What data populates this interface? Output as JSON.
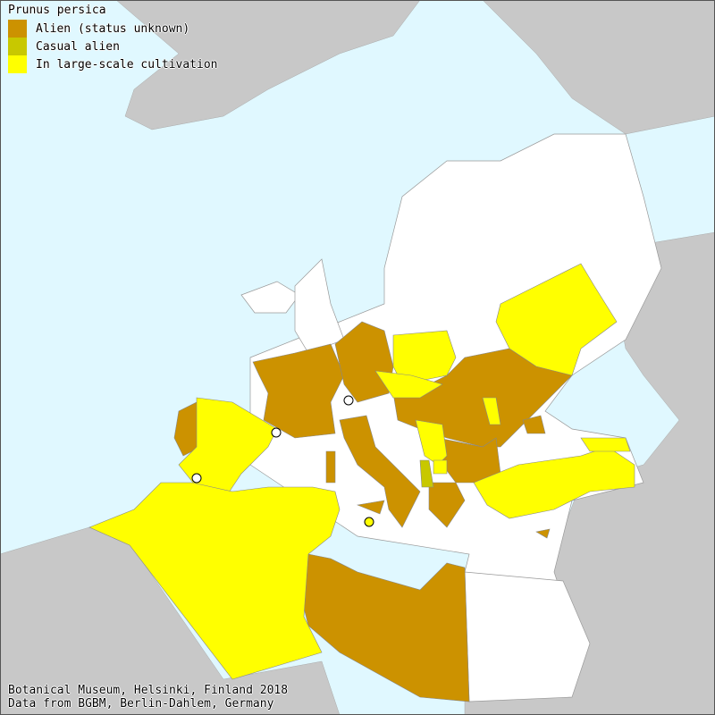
{
  "title": "Prunus persica",
  "legend": [
    {
      "label": "Alien (status unknown)",
      "color": "#cc9200"
    },
    {
      "label": "Casual alien",
      "color": "#c8c800"
    },
    {
      "label": "In large-scale cultivation",
      "color": "#ffff00"
    }
  ],
  "colors": {
    "sea": "#e0f8ff",
    "land_outside": "#c8c8c8",
    "no_data": "#ffffff"
  },
  "footer": {
    "line1": "Botanical Museum, Helsinki, Finland 2018",
    "line2": "Data from BGBM, Berlin-Dahlem, Germany"
  },
  "markers": [
    {
      "status": "no data / native point",
      "color": "#ffffff"
    },
    {
      "status": "In large-scale cultivation",
      "color": "#ffff00"
    }
  ]
}
